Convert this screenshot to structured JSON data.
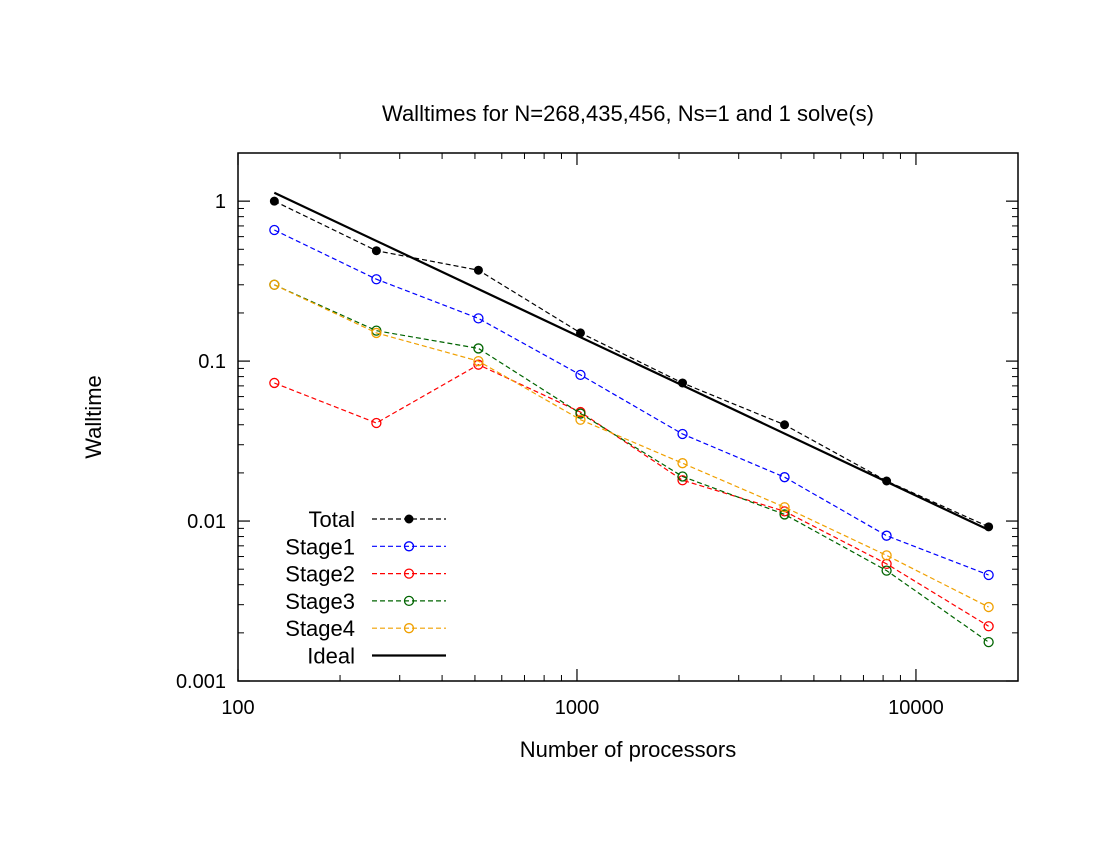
{
  "chart_data": {
    "type": "line",
    "title": "Walltimes for N=268,435,456, Ns=1 and 1 solve(s)",
    "xlabel": "Number of processors",
    "ylabel": "Walltime",
    "xscale": "log",
    "yscale": "log",
    "xlim": [
      100,
      20000
    ],
    "ylim": [
      0.001,
      2
    ],
    "xticks": [
      {
        "value": 100,
        "label": "100"
      },
      {
        "value": 1000,
        "label": "1000"
      },
      {
        "value": 10000,
        "label": "10000"
      }
    ],
    "yticks": [
      {
        "value": 0.001,
        "label": "0.001"
      },
      {
        "value": 0.01,
        "label": "0.01"
      },
      {
        "value": 0.1,
        "label": "0.1"
      },
      {
        "value": 1,
        "label": "1"
      }
    ],
    "grid": false,
    "legend_position": "bottom-left",
    "series": [
      {
        "name": "Total",
        "color": "#000000",
        "marker": "filled-circle",
        "dash": "dashed",
        "x": [
          128,
          256,
          512,
          1024,
          2048,
          4096,
          8192,
          16384
        ],
        "y": [
          1.0,
          0.49,
          0.37,
          0.15,
          0.073,
          0.04,
          0.0178,
          0.0092
        ]
      },
      {
        "name": "Stage1",
        "color": "#0000ff",
        "marker": "open-circle",
        "dash": "dashed",
        "x": [
          128,
          256,
          512,
          1024,
          2048,
          4096,
          8192,
          16384
        ],
        "y": [
          0.66,
          0.325,
          0.185,
          0.082,
          0.035,
          0.0188,
          0.0081,
          0.0046
        ]
      },
      {
        "name": "Stage2",
        "color": "#ff0000",
        "marker": "open-circle",
        "dash": "dashed",
        "x": [
          128,
          256,
          512,
          1024,
          2048,
          4096,
          8192,
          16384
        ],
        "y": [
          0.073,
          0.041,
          0.095,
          0.048,
          0.018,
          0.0115,
          0.0054,
          0.0022
        ]
      },
      {
        "name": "Stage3",
        "color": "#006400",
        "marker": "open-circle",
        "dash": "dashed",
        "x": [
          128,
          256,
          512,
          1024,
          2048,
          4096,
          8192,
          16384
        ],
        "y": [
          0.3,
          0.155,
          0.12,
          0.047,
          0.019,
          0.011,
          0.0049,
          0.00175
        ]
      },
      {
        "name": "Stage4",
        "color": "#f0a000",
        "marker": "open-circle",
        "dash": "dashed",
        "x": [
          128,
          256,
          512,
          1024,
          2048,
          4096,
          8192,
          16384
        ],
        "y": [
          0.3,
          0.15,
          0.1,
          0.043,
          0.023,
          0.0122,
          0.0061,
          0.0029
        ]
      },
      {
        "name": "Ideal",
        "color": "#000000",
        "marker": "none",
        "dash": "solid",
        "x": [
          128,
          16384
        ],
        "y": [
          1.13,
          0.0088
        ]
      }
    ]
  }
}
